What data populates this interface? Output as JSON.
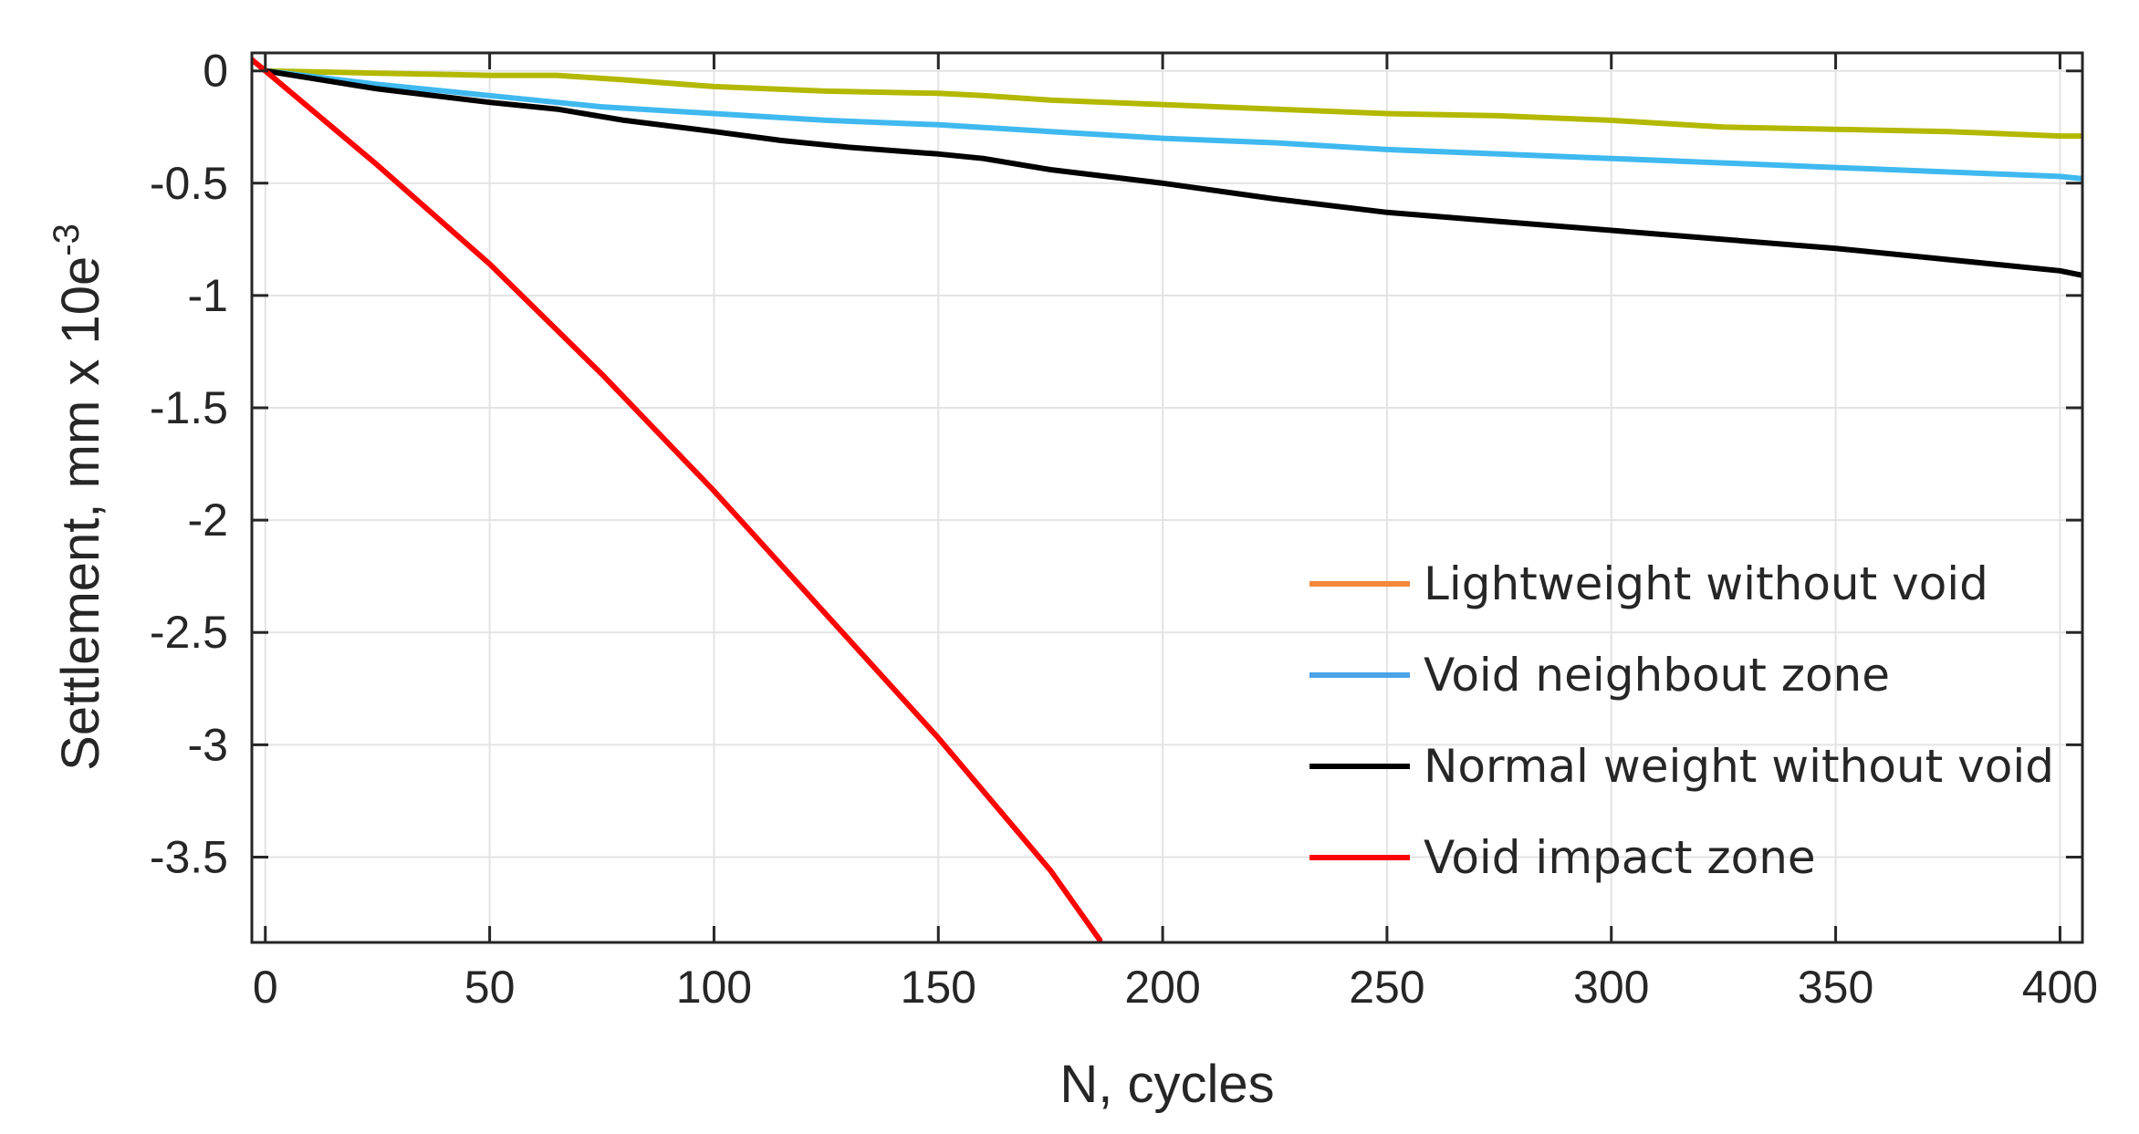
{
  "chart_data": {
    "type": "line",
    "xlabel": "N, cycles",
    "ylabel_main": "Settlement, mm x 10e",
    "ylabel_exp": "-3",
    "xlim": [
      -3,
      405
    ],
    "ylim": [
      -3.88,
      0.08
    ],
    "xticks": [
      0,
      50,
      100,
      150,
      200,
      250,
      300,
      350,
      400
    ],
    "yticks": [
      0,
      -0.5,
      -1,
      -1.5,
      -2,
      -2.5,
      -3,
      -3.5
    ],
    "xtick_labels": [
      "0",
      "50",
      "100",
      "150",
      "200",
      "250",
      "300",
      "350",
      "400"
    ],
    "ytick_labels": [
      "0",
      "-0.5",
      "-1",
      "-1.5",
      "-2",
      "-2.5",
      "-3",
      "-3.5"
    ],
    "grid": true,
    "legend_position": "bottom-right",
    "series": [
      {
        "name": "Lightweight without void",
        "legend_color": "#f5883a",
        "line_color": "#b3b800",
        "x": [
          0,
          25,
          50,
          65,
          80,
          100,
          125,
          150,
          160,
          175,
          200,
          225,
          250,
          275,
          300,
          325,
          350,
          375,
          400,
          405
        ],
        "y": [
          0,
          -0.01,
          -0.02,
          -0.02,
          -0.04,
          -0.07,
          -0.09,
          -0.1,
          -0.11,
          -0.13,
          -0.15,
          -0.17,
          -0.19,
          -0.2,
          -0.22,
          -0.25,
          -0.26,
          -0.27,
          -0.29,
          -0.29
        ]
      },
      {
        "name": "Void neighbout zone",
        "legend_color": "#4aa3e8",
        "line_color": "#3fb9ef",
        "x": [
          0,
          25,
          50,
          75,
          100,
          125,
          150,
          175,
          200,
          225,
          250,
          275,
          300,
          325,
          350,
          375,
          400,
          405
        ],
        "y": [
          0,
          -0.06,
          -0.11,
          -0.16,
          -0.19,
          -0.22,
          -0.24,
          -0.27,
          -0.3,
          -0.32,
          -0.35,
          -0.37,
          -0.39,
          -0.41,
          -0.43,
          -0.45,
          -0.47,
          -0.48
        ]
      },
      {
        "name": "Normal weight without void",
        "legend_color": "#000000",
        "line_color": "#000000",
        "x": [
          0,
          25,
          50,
          65,
          80,
          100,
          115,
          130,
          150,
          160,
          175,
          200,
          225,
          250,
          275,
          300,
          325,
          350,
          375,
          400,
          405
        ],
        "y": [
          0,
          -0.08,
          -0.14,
          -0.17,
          -0.22,
          -0.27,
          -0.31,
          -0.34,
          -0.37,
          -0.39,
          -0.44,
          -0.5,
          -0.57,
          -0.63,
          -0.67,
          -0.71,
          -0.75,
          -0.79,
          -0.84,
          -0.89,
          -0.91
        ]
      },
      {
        "name": "Void impact zone",
        "legend_color": "#ff0000",
        "line_color": "#ff0000",
        "x": [
          -3,
          0,
          25,
          50,
          75,
          100,
          125,
          150,
          175,
          186
        ],
        "y": [
          0.05,
          0,
          -0.42,
          -0.86,
          -1.35,
          -1.87,
          -2.42,
          -2.97,
          -3.56,
          -3.87
        ]
      }
    ]
  }
}
